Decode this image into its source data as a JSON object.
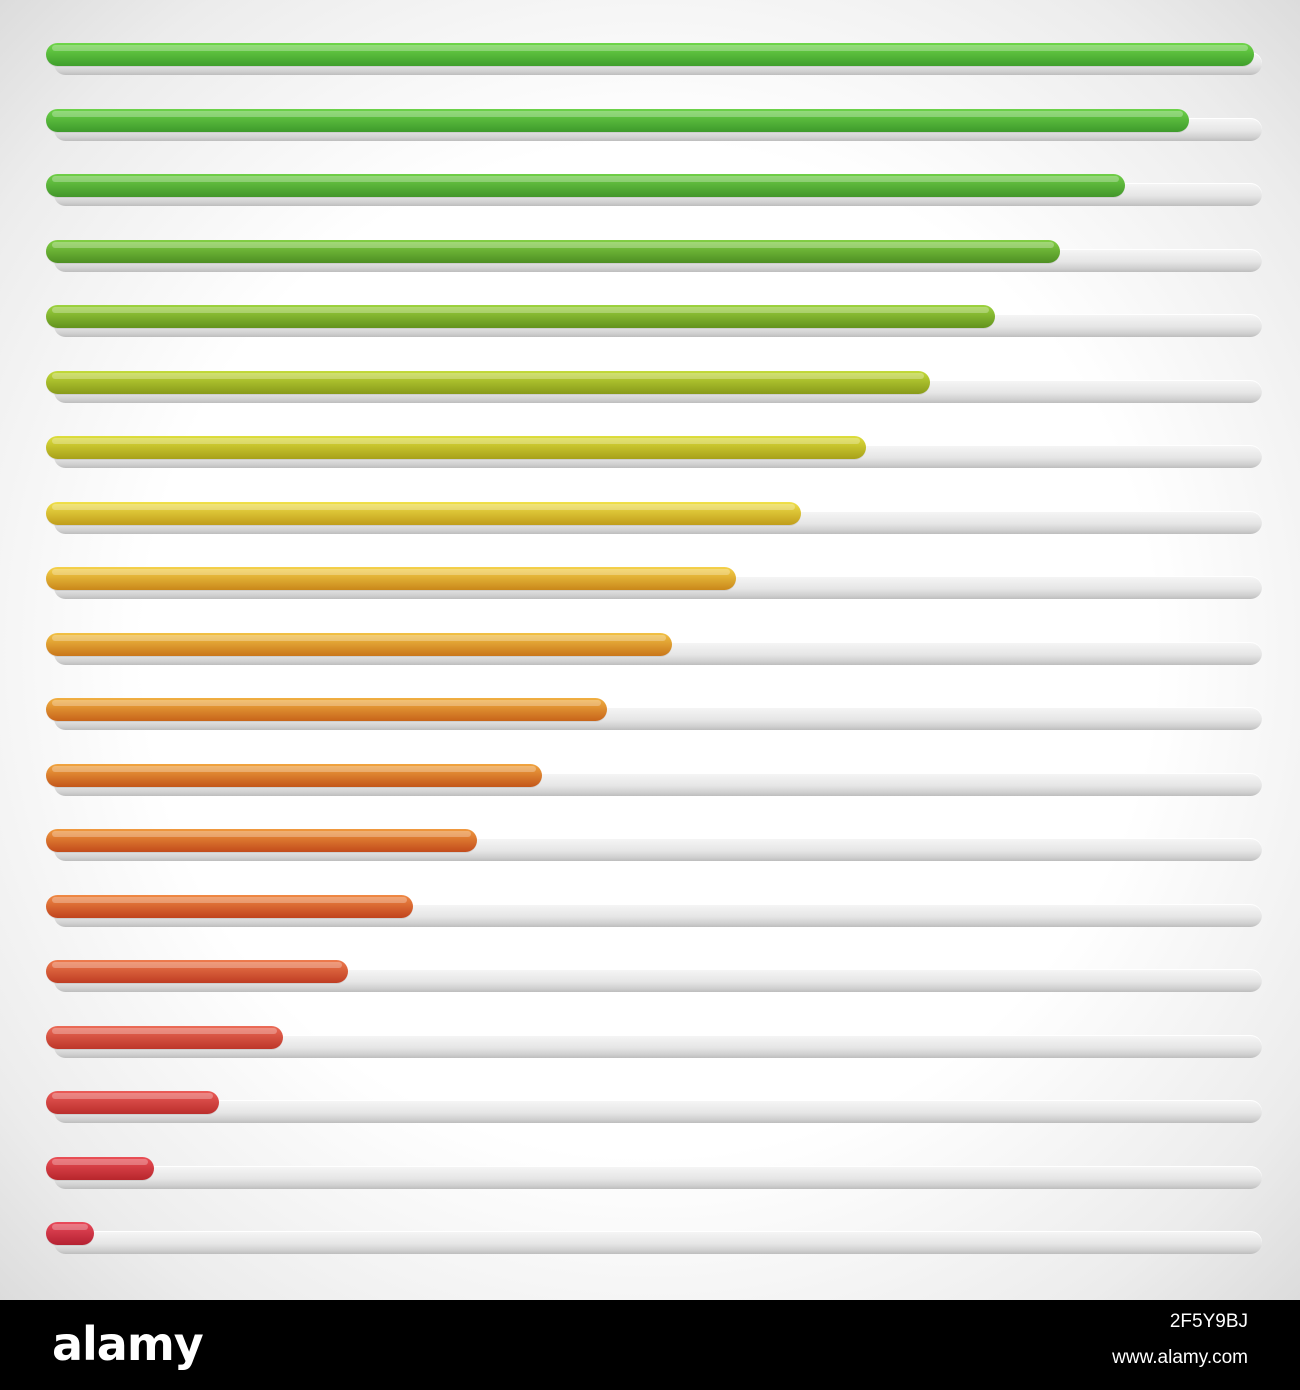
{
  "progress_bars": [
    {
      "level": 1.0,
      "color_top": "#6fd64a",
      "color_bottom": "#3f9e2b"
    },
    {
      "level": 0.946,
      "color_top": "#6dd24a",
      "color_bottom": "#3e9a2b"
    },
    {
      "level": 0.893,
      "color_top": "#70cf48",
      "color_bottom": "#42962a"
    },
    {
      "level": 0.839,
      "color_top": "#82cf44",
      "color_bottom": "#4e8f23"
    },
    {
      "level": 0.786,
      "color_top": "#9dd33f",
      "color_bottom": "#62921d"
    },
    {
      "level": 0.732,
      "color_top": "#c3da3a",
      "color_bottom": "#889a1a"
    },
    {
      "level": 0.679,
      "color_top": "#dede3c",
      "color_bottom": "#a7a019"
    },
    {
      "level": 0.625,
      "color_top": "#f0e04a",
      "color_bottom": "#c09d1b"
    },
    {
      "level": 0.571,
      "color_top": "#f5d24a",
      "color_bottom": "#c9871a"
    },
    {
      "level": 0.518,
      "color_top": "#f2c245",
      "color_bottom": "#c9761a"
    },
    {
      "level": 0.464,
      "color_top": "#f1b042",
      "color_bottom": "#c7641a"
    },
    {
      "level": 0.411,
      "color_top": "#f1a540",
      "color_bottom": "#c3561a"
    },
    {
      "level": 0.357,
      "color_top": "#f0993f",
      "color_bottom": "#c24b1b"
    },
    {
      "level": 0.304,
      "color_top": "#f08a45",
      "color_bottom": "#c0431d"
    },
    {
      "level": 0.25,
      "color_top": "#ee7b4e",
      "color_bottom": "#bf3d23"
    },
    {
      "level": 0.196,
      "color_top": "#ec6b57",
      "color_bottom": "#bd3629"
    },
    {
      "level": 0.143,
      "color_top": "#eb5c58",
      "color_bottom": "#ba2e2c"
    },
    {
      "level": 0.089,
      "color_top": "#ea4f56",
      "color_bottom": "#b7262c"
    },
    {
      "level": 0.04,
      "color_top": "#e94a5a",
      "color_bottom": "#b42132"
    }
  ],
  "footer": {
    "brand": "alamy",
    "image_id": "2F5Y9BJ",
    "site": "www.alamy.com"
  }
}
